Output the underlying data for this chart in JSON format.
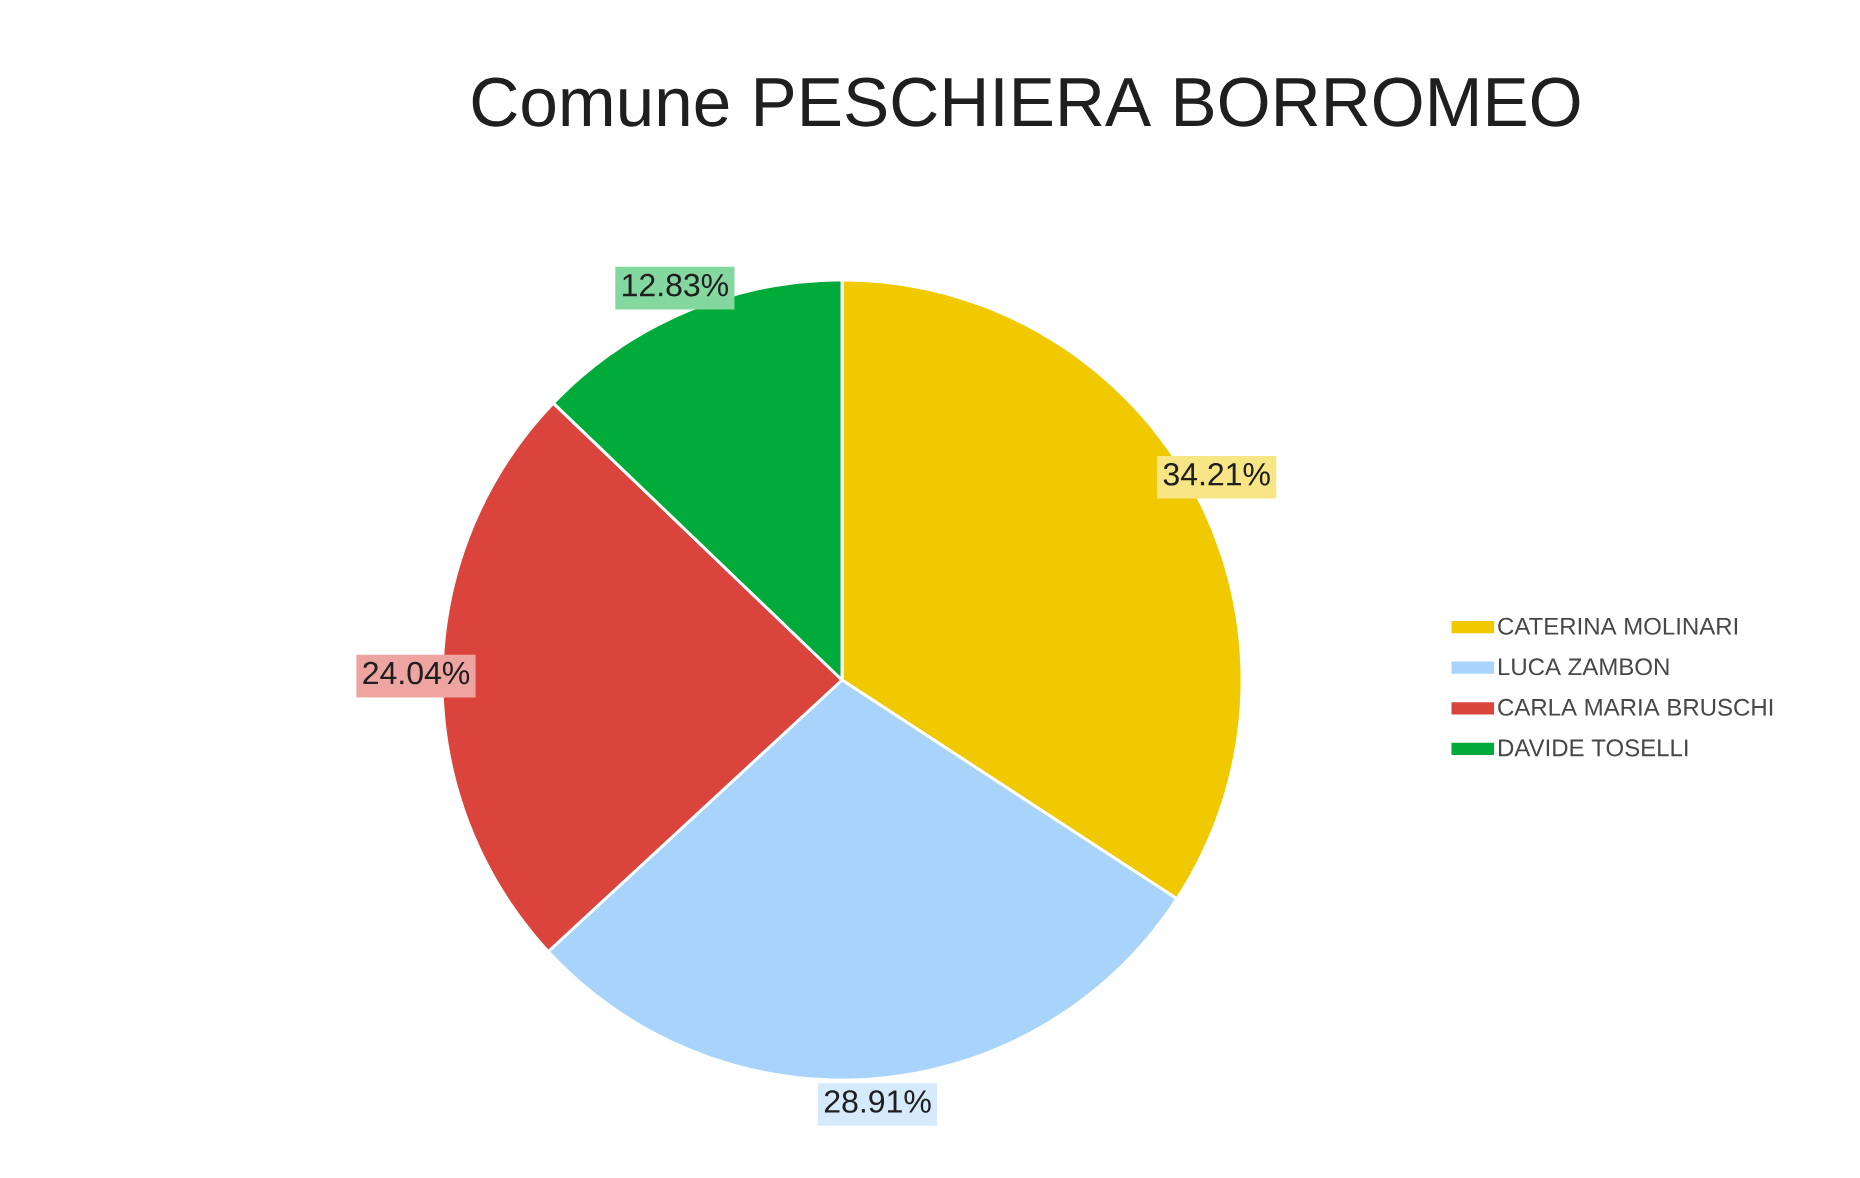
{
  "chart_data": {
    "type": "pie",
    "title": "Comune PESCHIERA BORROMEO",
    "categories": [
      "CATERINA MOLINARI",
      "LUCA ZAMBON",
      "CARLA MARIA BRUSCHI",
      "DAVIDE TOSELLI"
    ],
    "values": [
      34.21,
      28.91,
      24.04,
      12.83
    ],
    "colors": [
      "#f1c900",
      "#a8d3fb",
      "#db443c",
      "#00ab39"
    ],
    "value_labels": [
      "34.21%",
      "28.91%",
      "24.04%",
      "12.83%"
    ],
    "legend": "right"
  }
}
